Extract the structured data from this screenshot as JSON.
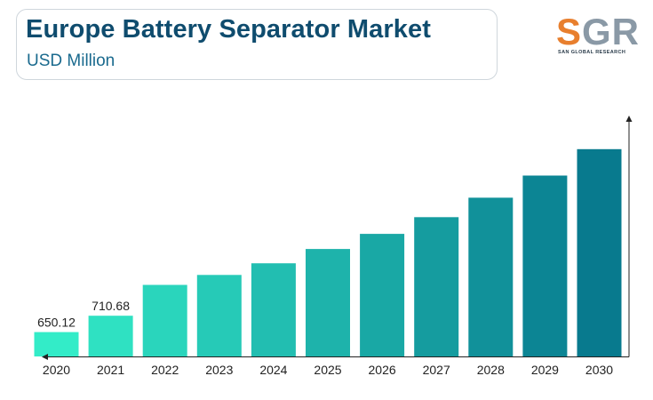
{
  "header": {
    "title": "Europe Battery Separator Market",
    "subtitle": "USD Million"
  },
  "logo": {
    "letters_s": "S",
    "letters_rest": "GR",
    "tagline": "SAN GLOBAL RESEARCH"
  },
  "colors": {
    "title": "#0f4c6e",
    "bar_start": "#33ecc8",
    "bar_end": "#087a8e",
    "axis": "#222222"
  },
  "chart_data": {
    "type": "bar",
    "title": "Europe Battery Separator Market",
    "subtitle": "USD Million",
    "categories": [
      "2020",
      "2021",
      "2022",
      "2023",
      "2024",
      "2025",
      "2026",
      "2027",
      "2028",
      "2029",
      "2030"
    ],
    "values": [
      650.12,
      710.68,
      825,
      862,
      905,
      958,
      1014,
      1076,
      1148,
      1230,
      1328
    ],
    "data_labels": [
      "650.12",
      "710.68",
      "",
      "",
      "",
      "",
      "",
      "",
      "",
      "",
      ""
    ],
    "xlabel": "",
    "ylabel": "",
    "ylim": [
      560,
      1370
    ],
    "grid": false,
    "legend": "none"
  }
}
